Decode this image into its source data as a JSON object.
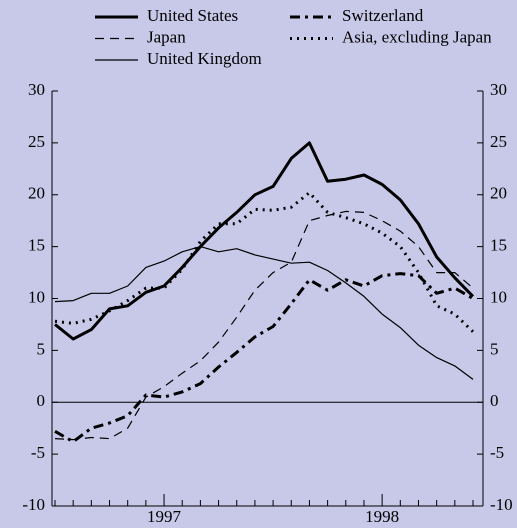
{
  "chart_data": {
    "type": "line",
    "categories": [
      null,
      null,
      null,
      null,
      null,
      null,
      "1997",
      null,
      null,
      null,
      null,
      null,
      null,
      null,
      null,
      null,
      null,
      null,
      "1998",
      null,
      null,
      null,
      null,
      null
    ],
    "series": [
      {
        "name": "United States",
        "color": "#000000",
        "linestyle": "thick",
        "values": [
          7.5,
          6.1,
          7.0,
          9.0,
          9.3,
          10.6,
          11.2,
          13.0,
          15.0,
          16.8,
          18.3,
          20.0,
          20.8,
          23.5,
          25.0,
          21.3,
          21.5,
          21.9,
          21.0,
          19.5,
          17.2,
          14.0,
          12.0,
          10.2
        ]
      },
      {
        "name": "Japan",
        "color": "#000000",
        "linestyle": "dashed",
        "values": [
          -3.5,
          -3.6,
          -3.4,
          -3.5,
          -2.5,
          0.5,
          1.5,
          2.8,
          4.0,
          5.8,
          8.2,
          10.8,
          12.5,
          13.5,
          17.5,
          18.0,
          18.4,
          18.3,
          17.5,
          16.5,
          15.0,
          12.5,
          12.5,
          11.0
        ]
      },
      {
        "name": "United Kingdom",
        "color": "#000000",
        "linestyle": "thin",
        "values": [
          9.7,
          9.8,
          10.5,
          10.5,
          11.2,
          13.0,
          13.6,
          14.5,
          15.0,
          14.5,
          14.8,
          14.2,
          13.8,
          13.4,
          13.5,
          12.7,
          11.5,
          10.2,
          8.5,
          7.2,
          5.5,
          4.3,
          3.5,
          2.2
        ]
      },
      {
        "name": "Switzerland",
        "color": "#000000",
        "linestyle": "dashdot",
        "values": [
          -2.8,
          -3.8,
          -2.5,
          -2.0,
          -1.3,
          0.7,
          0.5,
          1.0,
          1.8,
          3.4,
          4.8,
          6.3,
          7.3,
          9.5,
          11.8,
          10.8,
          11.8,
          11.2,
          12.2,
          12.4,
          12.2,
          10.5,
          11.0,
          10.0
        ]
      },
      {
        "name": "Asia, excluding Japan",
        "color": "#000000",
        "linestyle": "dotted",
        "values": [
          7.8,
          7.6,
          8.0,
          8.8,
          9.8,
          11.0,
          11.0,
          12.8,
          15.5,
          17.2,
          17.2,
          18.6,
          18.5,
          18.8,
          20.2,
          18.3,
          17.8,
          17.2,
          16.3,
          15.0,
          12.5,
          9.3,
          8.5,
          6.8
        ]
      }
    ],
    "ylim": [
      -10,
      30
    ],
    "yticks": [
      -10,
      -5,
      0,
      5,
      10,
      15,
      20,
      25,
      30
    ],
    "y2lim": [
      -10,
      30
    ],
    "y2ticks": [
      -10,
      -5,
      0,
      5,
      10,
      15,
      20,
      25,
      30
    ],
    "grid": false
  }
}
